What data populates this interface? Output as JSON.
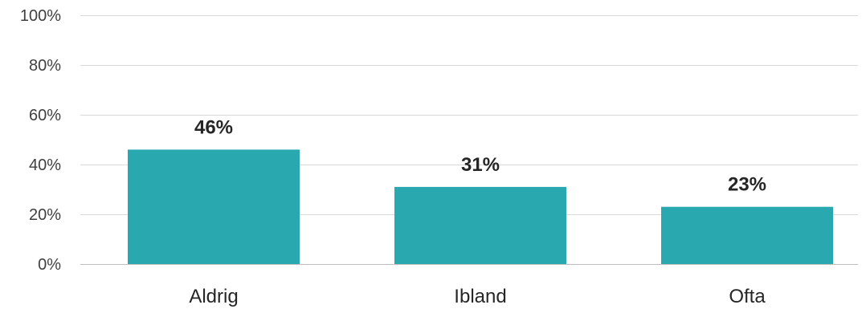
{
  "chart_data": {
    "type": "bar",
    "title": "",
    "xlabel": "",
    "ylabel": "",
    "categories": [
      "Aldrig",
      "Ibland",
      "Ofta"
    ],
    "values": [
      46,
      31,
      23
    ],
    "data_labels": [
      "46%",
      "31%",
      "23%"
    ],
    "ylim": [
      0,
      100
    ],
    "yticks": [
      0,
      20,
      40,
      60,
      80,
      100
    ],
    "ytick_labels": [
      "0%",
      "20%",
      "40%",
      "60%",
      "80%",
      "100%"
    ],
    "grid": true,
    "legend": "none",
    "bar_color": "#2aa8b0"
  }
}
